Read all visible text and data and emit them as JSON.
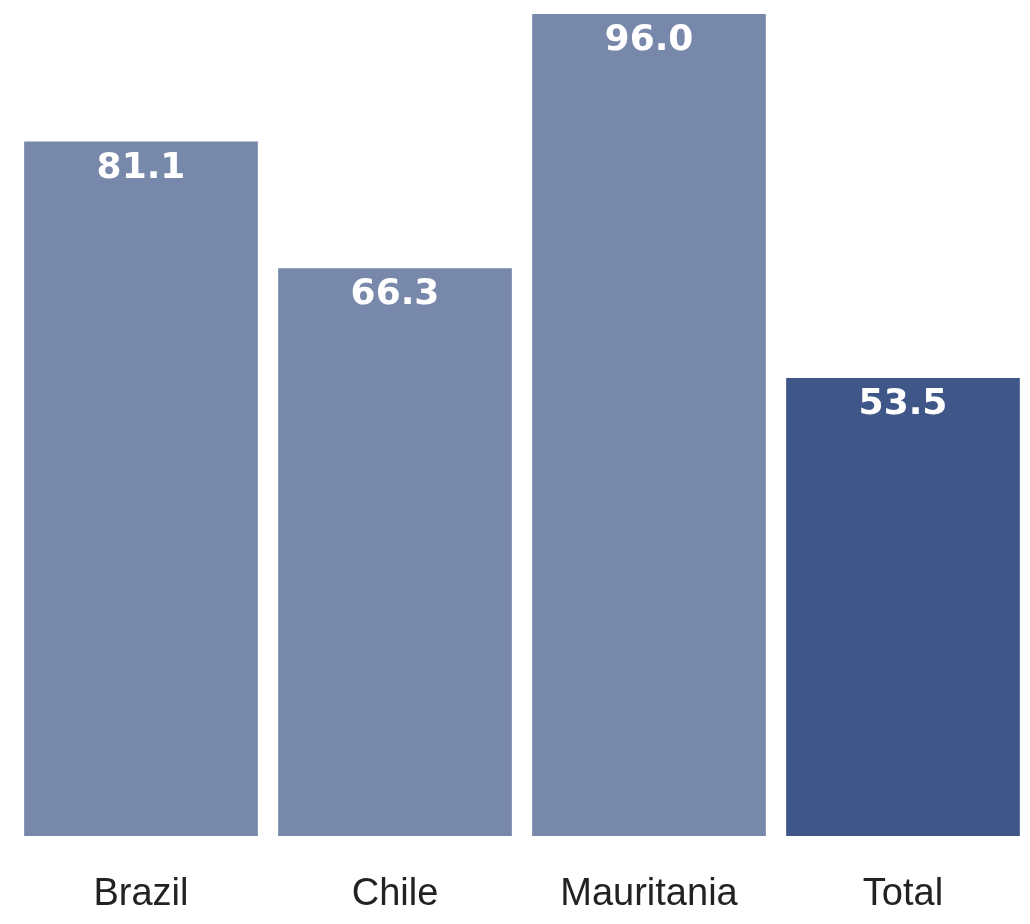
{
  "chart_data": {
    "type": "bar",
    "categories": [
      "Brazil",
      "Chile",
      "Mauritania",
      "Total"
    ],
    "values": [
      81.1,
      66.3,
      96.0,
      53.5
    ],
    "colors": [
      "#7888ab",
      "#7888ab",
      "#7888ab",
      "#3f5689"
    ],
    "value_labels": [
      "81.1",
      "66.3",
      "96.0",
      "53.5"
    ]
  }
}
